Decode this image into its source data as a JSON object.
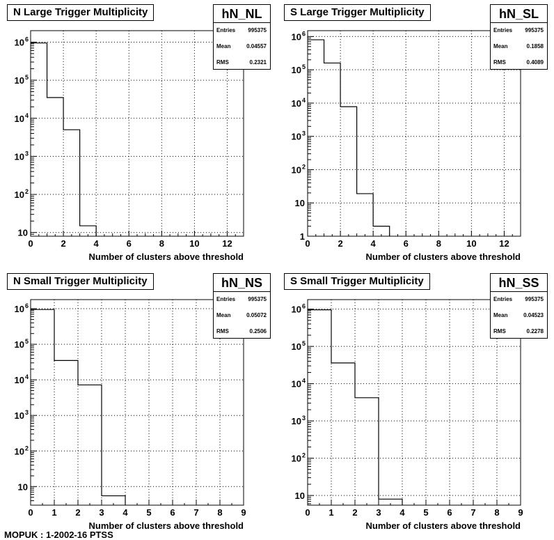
{
  "footer_text": "MOPUK : 1-2002-16 PTSS",
  "chart_data": [
    {
      "type": "histogram",
      "title": "N Large Trigger Multiplicity",
      "stats": {
        "name": "hN_NL",
        "entries": "995375",
        "mean": "0.04557",
        "rms": "0.2321"
      },
      "xlabel": "Number of clusters above threshold",
      "ylabel": "",
      "xlim": [
        0,
        13
      ],
      "ylim": [
        8,
        2000000
      ],
      "log_y": true,
      "grid": true,
      "x_ticks": [
        0,
        2,
        4,
        6,
        8,
        10,
        12
      ],
      "y_ticks": [
        {
          "v": 10,
          "label": "10"
        },
        {
          "v": 100,
          "label": "10",
          "exp": "2"
        },
        {
          "v": 1000,
          "label": "10",
          "exp": "3"
        },
        {
          "v": 10000,
          "label": "10",
          "exp": "4"
        },
        {
          "v": 100000,
          "label": "10",
          "exp": "5"
        },
        {
          "v": 1000000,
          "label": "10",
          "exp": "6"
        }
      ],
      "bins": [
        {
          "x0": 0,
          "x1": 1,
          "y": 950000
        },
        {
          "x0": 1,
          "x1": 2,
          "y": 35000
        },
        {
          "x0": 2,
          "x1": 3,
          "y": 5000
        },
        {
          "x0": 3,
          "x1": 4,
          "y": 15
        }
      ]
    },
    {
      "type": "histogram",
      "title": "S Large Trigger Multiplicity",
      "stats": {
        "name": "hN_SL",
        "entries": "995375",
        "mean": "0.1858",
        "rms": "0.4089"
      },
      "xlabel": "Number of clusters above threshold",
      "ylabel": "",
      "xlim": [
        0,
        13
      ],
      "ylim": [
        1,
        1500000
      ],
      "log_y": true,
      "grid": true,
      "x_ticks": [
        0,
        2,
        4,
        6,
        8,
        10,
        12
      ],
      "y_ticks": [
        {
          "v": 1,
          "label": "1"
        },
        {
          "v": 10,
          "label": "10"
        },
        {
          "v": 100,
          "label": "10",
          "exp": "2"
        },
        {
          "v": 1000,
          "label": "10",
          "exp": "3"
        },
        {
          "v": 10000,
          "label": "10",
          "exp": "4"
        },
        {
          "v": 100000,
          "label": "10",
          "exp": "5"
        },
        {
          "v": 1000000,
          "label": "10",
          "exp": "6"
        }
      ],
      "bins": [
        {
          "x0": 0,
          "x1": 1,
          "y": 800000
        },
        {
          "x0": 1,
          "x1": 2,
          "y": 160000
        },
        {
          "x0": 2,
          "x1": 3,
          "y": 7800
        },
        {
          "x0": 3,
          "x1": 4,
          "y": 19
        },
        {
          "x0": 4,
          "x1": 5,
          "y": 2
        }
      ]
    },
    {
      "type": "histogram",
      "title": "N Small Trigger Multiplicity",
      "stats": {
        "name": "hN_NS",
        "entries": "995375",
        "mean": "0.05072",
        "rms": "0.2506"
      },
      "xlabel": "Number of clusters above threshold",
      "ylabel": "",
      "xlim": [
        0,
        9
      ],
      "ylim": [
        3,
        1800000
      ],
      "log_y": true,
      "grid": true,
      "x_ticks": [
        0,
        1,
        2,
        3,
        4,
        5,
        6,
        7,
        8,
        9
      ],
      "y_ticks": [
        {
          "v": 10,
          "label": "10"
        },
        {
          "v": 100,
          "label": "10",
          "exp": "2"
        },
        {
          "v": 1000,
          "label": "10",
          "exp": "3"
        },
        {
          "v": 10000,
          "label": "10",
          "exp": "4"
        },
        {
          "v": 100000,
          "label": "10",
          "exp": "5"
        },
        {
          "v": 1000000,
          "label": "10",
          "exp": "6"
        }
      ],
      "bins": [
        {
          "x0": 0,
          "x1": 1,
          "y": 950000
        },
        {
          "x0": 1,
          "x1": 2,
          "y": 35000
        },
        {
          "x0": 2,
          "x1": 3,
          "y": 7200
        },
        {
          "x0": 3,
          "x1": 4,
          "y": 5.5
        }
      ]
    },
    {
      "type": "histogram",
      "title": "S Small Trigger Multiplicity",
      "stats": {
        "name": "hN_SS",
        "entries": "995375",
        "mean": "0.04523",
        "rms": "0.2278"
      },
      "xlabel": "Number of clusters above threshold",
      "ylabel": "",
      "xlim": [
        0,
        9
      ],
      "ylim": [
        5.5,
        1800000
      ],
      "log_y": true,
      "grid": true,
      "x_ticks": [
        0,
        1,
        2,
        3,
        4,
        5,
        6,
        7,
        8,
        9
      ],
      "y_ticks": [
        {
          "v": 10,
          "label": "10"
        },
        {
          "v": 100,
          "label": "10",
          "exp": "2"
        },
        {
          "v": 1000,
          "label": "10",
          "exp": "3"
        },
        {
          "v": 10000,
          "label": "10",
          "exp": "4"
        },
        {
          "v": 100000,
          "label": "10",
          "exp": "5"
        },
        {
          "v": 1000000,
          "label": "10",
          "exp": "6"
        }
      ],
      "bins": [
        {
          "x0": 0,
          "x1": 1,
          "y": 960000
        },
        {
          "x0": 1,
          "x1": 2,
          "y": 36000
        },
        {
          "x0": 2,
          "x1": 3,
          "y": 4200
        },
        {
          "x0": 3,
          "x1": 4,
          "y": 8
        }
      ]
    }
  ]
}
